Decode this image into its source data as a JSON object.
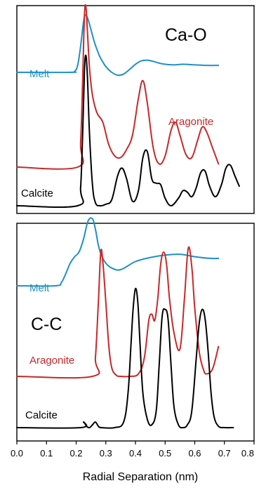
{
  "colors": {
    "melt": "#1e90c8",
    "aragonite": "#c8282a",
    "calcite": "#000000"
  },
  "xlabel": "Radial Separation (nm)",
  "xlim": [
    0.0,
    0.8
  ],
  "x_ticks": [
    "0.0",
    "0.1",
    "0.2",
    "0.3",
    "0.4",
    "0.5",
    "0.6",
    "0.7",
    "0.8"
  ],
  "chart_data": [
    {
      "type": "line",
      "title": "Ca-O",
      "xlabel": "Radial Separation (nm)",
      "xlim": [
        0.0,
        0.8
      ],
      "series": [
        {
          "name": "Melt",
          "color": "#1e90c8",
          "x": [
            0.0,
            0.18,
            0.195,
            0.205,
            0.215,
            0.225,
            0.232,
            0.24,
            0.25,
            0.26,
            0.27,
            0.28,
            0.29,
            0.3,
            0.32,
            0.34,
            0.36,
            0.38,
            0.4,
            0.42,
            0.44,
            0.46,
            0.48,
            0.5,
            0.53,
            0.56,
            0.6,
            0.64,
            0.68
          ],
          "y": [
            0.0,
            0.0,
            0.02,
            0.12,
            0.45,
            0.88,
            1.0,
            0.92,
            0.74,
            0.55,
            0.4,
            0.27,
            0.18,
            0.1,
            0.0,
            -0.05,
            -0.03,
            0.05,
            0.14,
            0.2,
            0.21,
            0.19,
            0.16,
            0.14,
            0.13,
            0.14,
            0.13,
            0.12,
            0.12
          ]
        },
        {
          "name": "Aragonite",
          "color": "#c8282a",
          "x": [
            0.0,
            0.205,
            0.215,
            0.222,
            0.228,
            0.233,
            0.238,
            0.245,
            0.255,
            0.27,
            0.29,
            0.31,
            0.33,
            0.35,
            0.37,
            0.39,
            0.41,
            0.425,
            0.44,
            0.46,
            0.48,
            0.5,
            0.52,
            0.535,
            0.55,
            0.57,
            0.59,
            0.61,
            0.625,
            0.64,
            0.66,
            0.68
          ],
          "y": [
            0.0,
            0.0,
            0.15,
            0.55,
            0.95,
            1.0,
            0.85,
            0.62,
            0.45,
            0.34,
            0.28,
            0.14,
            0.07,
            0.06,
            0.11,
            0.2,
            0.43,
            0.54,
            0.4,
            0.12,
            0.02,
            0.07,
            0.23,
            0.28,
            0.2,
            0.08,
            0.06,
            0.17,
            0.25,
            0.22,
            0.12,
            0.02
          ]
        },
        {
          "name": "Calcite",
          "color": "#000000",
          "x": [
            0.0,
            0.205,
            0.215,
            0.222,
            0.228,
            0.233,
            0.238,
            0.245,
            0.255,
            0.265,
            0.28,
            0.3,
            0.32,
            0.34,
            0.355,
            0.37,
            0.39,
            0.41,
            0.425,
            0.44,
            0.455,
            0.47,
            0.485,
            0.5,
            0.52,
            0.545,
            0.56,
            0.575,
            0.59,
            0.605,
            0.62,
            0.635,
            0.65,
            0.67,
            0.69,
            0.705,
            0.72,
            0.735,
            0.75
          ],
          "y": [
            0.0,
            0.0,
            0.12,
            0.48,
            0.9,
            1.0,
            0.86,
            0.48,
            0.14,
            0.02,
            0.0,
            0.01,
            0.04,
            0.2,
            0.25,
            0.18,
            0.03,
            0.1,
            0.32,
            0.36,
            0.18,
            0.15,
            0.14,
            0.05,
            0.0,
            0.05,
            0.1,
            0.09,
            0.06,
            0.12,
            0.22,
            0.23,
            0.13,
            0.06,
            0.14,
            0.25,
            0.27,
            0.2,
            0.13
          ]
        }
      ]
    },
    {
      "type": "line",
      "title": "C-C",
      "xlabel": "Radial Separation (nm)",
      "xlim": [
        0.0,
        0.8
      ],
      "series": [
        {
          "name": "Melt",
          "color": "#1e90c8",
          "x": [
            0.0,
            0.13,
            0.15,
            0.165,
            0.18,
            0.195,
            0.21,
            0.225,
            0.24,
            0.255,
            0.265,
            0.275,
            0.285,
            0.3,
            0.32,
            0.35,
            0.4,
            0.45,
            0.5,
            0.55,
            0.6,
            0.65,
            0.68
          ],
          "y": [
            0.0,
            0.0,
            0.04,
            0.15,
            0.28,
            0.36,
            0.42,
            0.58,
            0.8,
            0.83,
            0.7,
            0.5,
            0.38,
            0.28,
            0.22,
            0.2,
            0.3,
            0.35,
            0.38,
            0.39,
            0.36,
            0.34,
            0.34
          ]
        },
        {
          "name": "Aragonite",
          "color": "#c8282a",
          "x": [
            0.0,
            0.255,
            0.265,
            0.275,
            0.283,
            0.29,
            0.3,
            0.31,
            0.32,
            0.335,
            0.35,
            0.38,
            0.41,
            0.43,
            0.445,
            0.455,
            0.465,
            0.475,
            0.485,
            0.495,
            0.505,
            0.515,
            0.53,
            0.55,
            0.565,
            0.578,
            0.59,
            0.6,
            0.615,
            0.63,
            0.64,
            0.66,
            0.68
          ],
          "y": [
            0.0,
            0.0,
            0.15,
            0.6,
            1.0,
            0.92,
            0.6,
            0.25,
            0.07,
            0.01,
            0.0,
            0.0,
            0.02,
            0.15,
            0.45,
            0.5,
            0.45,
            0.62,
            0.9,
            1.0,
            0.9,
            0.62,
            0.35,
            0.22,
            0.62,
            1.03,
            0.88,
            0.55,
            0.2,
            0.05,
            0.02,
            0.06,
            0.24
          ]
        },
        {
          "name": "Calcite",
          "color": "#000000",
          "x": [
            0.0,
            0.215,
            0.225,
            0.235,
            0.245,
            0.255,
            0.265,
            0.275,
            0.285,
            0.33,
            0.36,
            0.375,
            0.385,
            0.392,
            0.4,
            0.408,
            0.415,
            0.425,
            0.44,
            0.455,
            0.47,
            0.48,
            0.49,
            0.5,
            0.51,
            0.52,
            0.53,
            0.545,
            0.56,
            0.575,
            0.59,
            0.605,
            0.615,
            0.625,
            0.635,
            0.645,
            0.655,
            0.665,
            0.68,
            0.7,
            0.73
          ],
          "y": [
            0.0,
            0.0,
            0.04,
            0.01,
            0.0,
            0.02,
            0.04,
            0.01,
            0.0,
            0.0,
            0.04,
            0.25,
            0.6,
            0.85,
            1.0,
            0.9,
            0.62,
            0.25,
            0.06,
            0.02,
            0.12,
            0.45,
            0.8,
            0.85,
            0.78,
            0.45,
            0.15,
            0.02,
            0.0,
            0.02,
            0.12,
            0.5,
            0.75,
            0.85,
            0.78,
            0.55,
            0.25,
            0.08,
            0.01,
            0.0,
            0.0
          ]
        }
      ]
    }
  ]
}
